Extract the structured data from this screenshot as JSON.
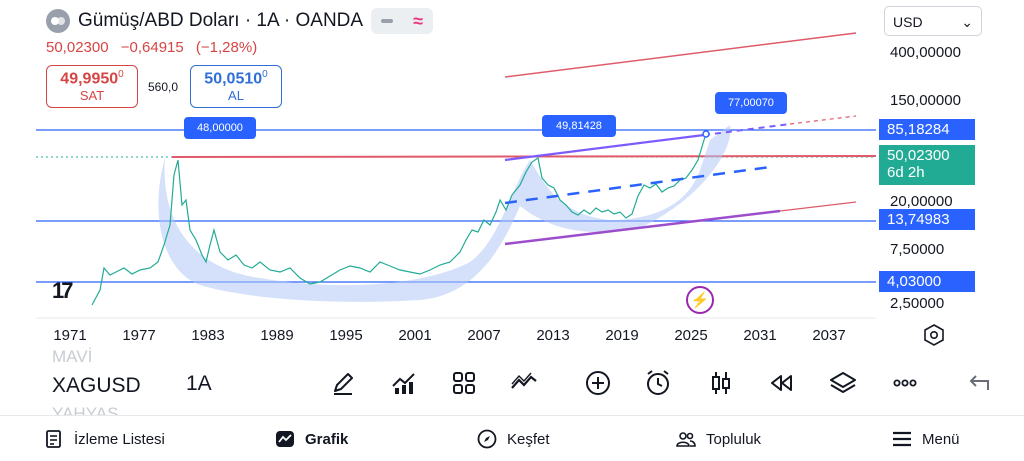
{
  "header": {
    "title": "Gümüş/ABD Doları · 1A · OANDA",
    "last_price": "50,02300",
    "change": "−0,64915",
    "change_pct": "(−1,28%)"
  },
  "trade": {
    "sell_value": "49,9950",
    "sell_sup": "0",
    "sell_label": "SAT",
    "spread": "560,0",
    "buy_value": "50,0510",
    "buy_sup": "0",
    "buy_label": "AL"
  },
  "currency": {
    "value": "USD"
  },
  "price_axis": {
    "labels": [
      "400,00000",
      "150,00000",
      "20,00000",
      "7,50000",
      "2,50000"
    ],
    "tags": {
      "level_1": "85,18284",
      "current": "50,02300",
      "countdown": "6d 2h",
      "level_2": "13,74983",
      "level_3": "4,03000"
    }
  },
  "time_axis": {
    "years": [
      "1971",
      "1977",
      "1983",
      "1989",
      "1995",
      "2001",
      "2007",
      "2013",
      "2019",
      "2025",
      "2031",
      "2037"
    ]
  },
  "callouts": {
    "high_1980": "48,00000",
    "high_2011": "49,81428",
    "target": "77,00070"
  },
  "toolbar": {
    "ghost_top": "MAVİ",
    "ticker": "XAGUSD",
    "ghost_bottom": "YAHYAS",
    "interval": "1A",
    "tools": [
      "pencil-icon",
      "indicators-icon",
      "layouts-icon",
      "drawings-icon",
      "add-icon",
      "alert-icon",
      "candle-type-icon",
      "replay-icon",
      "layers-icon",
      "more-icon",
      "undo-icon"
    ]
  },
  "nav": {
    "watchlist": "İzleme Listesi",
    "chart": "Grafik",
    "explore": "Keşfet",
    "community": "Topluluk",
    "menu": "Menü"
  },
  "colors": {
    "accent": "#2962ff",
    "down": "#d64545",
    "up": "#22ab94",
    "highlight": "#b3c8f5"
  }
}
